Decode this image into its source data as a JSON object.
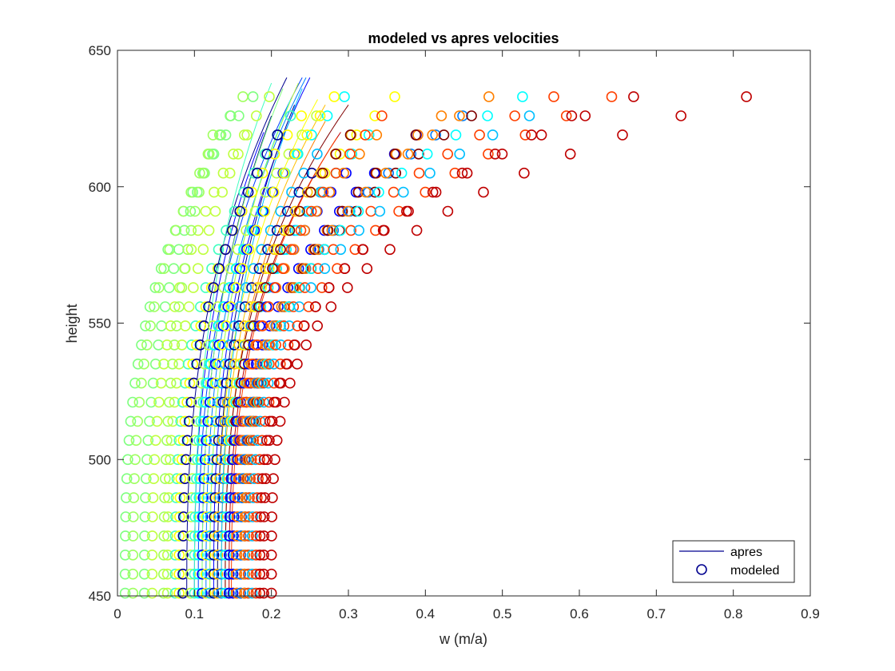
{
  "chart_data": {
    "type": "scatter",
    "title": "modeled vs apres velocities",
    "xlabel": "w (m/a)",
    "ylabel": "height",
    "xlim": [
      0,
      0.9
    ],
    "ylim": [
      450,
      650
    ],
    "xticks": [
      "0",
      "0.1",
      "0.2",
      "0.3",
      "0.4",
      "0.5",
      "0.6",
      "0.7",
      "0.8",
      "0.9"
    ],
    "yticks": [
      "450",
      "500",
      "550",
      "600",
      "650"
    ],
    "grid": false,
    "legend": {
      "placement": "bottom-right",
      "entries": [
        {
          "label": "apres",
          "kind": "line",
          "color": "#00008f"
        },
        {
          "label": "modeled",
          "kind": "marker",
          "color": "#00008f"
        }
      ]
    },
    "profile_model": "w(h) = w_base + (w_top - w_base) * ((h - 450) / (top - 450))^p",
    "modeled_series": [
      {
        "color": "#80ff80",
        "w_base": 0.01,
        "w_top": 0.19,
        "p": 3.0,
        "top": 638
      },
      {
        "color": "#a0ff60",
        "w_base": 0.02,
        "w_top": 0.175,
        "p": 3.0,
        "top": 638
      },
      {
        "color": "#80ff80",
        "w_base": 0.035,
        "w_top": 0.15,
        "p": 2.8,
        "top": 628
      },
      {
        "color": "#c0ff40",
        "w_base": 0.045,
        "w_top": 0.21,
        "p": 3.0,
        "top": 638
      },
      {
        "color": "#a0ff60",
        "w_base": 0.06,
        "w_top": 0.125,
        "p": 2.5,
        "top": 620
      },
      {
        "color": "#c0ff40",
        "w_base": 0.065,
        "w_top": 0.17,
        "p": 2.8,
        "top": 620
      },
      {
        "color": "#40ffc0",
        "w_base": 0.075,
        "w_top": 0.23,
        "p": 3.0,
        "top": 628
      },
      {
        "color": "#ffff00",
        "w_base": 0.08,
        "w_top": 0.25,
        "p": 3.0,
        "top": 630
      },
      {
        "color": "#00008f",
        "w_base": 0.085,
        "w_top": 0.21,
        "p": 2.8,
        "top": 620
      },
      {
        "color": "#c0ff40",
        "w_base": 0.095,
        "w_top": 0.27,
        "p": 3.0,
        "top": 630
      },
      {
        "color": "#40ffc0",
        "w_base": 0.1,
        "w_top": 0.25,
        "p": 3.0,
        "top": 618
      },
      {
        "color": "#00ffff",
        "w_base": 0.105,
        "w_top": 0.305,
        "p": 3.2,
        "top": 636
      },
      {
        "color": "#0000ff",
        "w_base": 0.11,
        "w_top": 0.23,
        "p": 3.0,
        "top": 612
      },
      {
        "color": "#ffff00",
        "w_base": 0.115,
        "w_top": 0.29,
        "p": 3.0,
        "top": 636
      },
      {
        "color": "#00bfff",
        "w_base": 0.12,
        "w_top": 0.27,
        "p": 3.0,
        "top": 616
      },
      {
        "color": "#00008f",
        "w_base": 0.125,
        "w_top": 0.26,
        "p": 3.0,
        "top": 608
      },
      {
        "color": "#ffbf00",
        "w_base": 0.13,
        "w_top": 0.31,
        "p": 3.0,
        "top": 621
      },
      {
        "color": "#0080ff",
        "w_base": 0.135,
        "w_top": 0.28,
        "p": 3.0,
        "top": 604
      },
      {
        "color": "#ffff00",
        "w_base": 0.14,
        "w_top": 0.38,
        "p": 3.2,
        "top": 638
      },
      {
        "color": "#00ffff",
        "w_base": 0.14,
        "w_top": 0.33,
        "p": 3.0,
        "top": 620
      },
      {
        "color": "#800000",
        "w_base": 0.145,
        "w_top": 0.32,
        "p": 3.0,
        "top": 625
      },
      {
        "color": "#0000ff",
        "w_base": 0.145,
        "w_top": 0.3,
        "p": 3.0,
        "top": 606
      },
      {
        "color": "#ff8000",
        "w_base": 0.15,
        "w_top": 0.34,
        "p": 3.0,
        "top": 620
      },
      {
        "color": "#0000ff",
        "w_base": 0.15,
        "w_top": 0.41,
        "p": 3.0,
        "top": 624
      },
      {
        "color": "#ff4000",
        "w_base": 0.155,
        "w_top": 0.35,
        "p": 3.0,
        "top": 628
      },
      {
        "color": "#ff8000",
        "w_base": 0.155,
        "w_top": 0.43,
        "p": 3.0,
        "top": 628
      },
      {
        "color": "#800000",
        "w_base": 0.16,
        "w_top": 0.4,
        "p": 3.0,
        "top": 622
      },
      {
        "color": "#0080ff",
        "w_base": 0.16,
        "w_top": 0.47,
        "p": 3.2,
        "top": 630
      },
      {
        "color": "#800000",
        "w_base": 0.165,
        "w_top": 0.46,
        "p": 3.2,
        "top": 626
      },
      {
        "color": "#ff8000",
        "w_base": 0.165,
        "w_top": 0.5,
        "p": 3.3,
        "top": 636
      },
      {
        "color": "#00ffff",
        "w_base": 0.17,
        "w_top": 0.54,
        "p": 3.5,
        "top": 635
      },
      {
        "color": "#ff4000",
        "w_base": 0.17,
        "w_top": 0.59,
        "p": 3.5,
        "top": 636
      },
      {
        "color": "#00bfff",
        "w_base": 0.175,
        "w_top": 0.58,
        "p": 3.5,
        "top": 632
      },
      {
        "color": "#ff4000",
        "w_base": 0.18,
        "w_top": 0.66,
        "p": 3.5,
        "top": 635
      },
      {
        "color": "#bf0000",
        "w_base": 0.185,
        "w_top": 0.59,
        "p": 3.4,
        "top": 626
      },
      {
        "color": "#bf0000",
        "w_base": 0.19,
        "w_top": 0.68,
        "p": 3.6,
        "top": 634
      },
      {
        "color": "#bf0000",
        "w_base": 0.2,
        "w_top": 0.83,
        "p": 3.8,
        "top": 634
      }
    ],
    "modeled_heights_step": 7,
    "apres_series": [
      {
        "color": "#00008f",
        "w_base": 0.09,
        "w_top": 0.22,
        "p": 2.6,
        "top": 640
      },
      {
        "color": "#0000ff",
        "w_base": 0.1,
        "w_top": 0.19,
        "p": 2.6,
        "top": 620
      },
      {
        "color": "#0040ff",
        "w_base": 0.105,
        "w_top": 0.24,
        "p": 2.7,
        "top": 640
      },
      {
        "color": "#00008f",
        "w_base": 0.11,
        "w_top": 0.2,
        "p": 2.6,
        "top": 626
      },
      {
        "color": "#0080ff",
        "w_base": 0.115,
        "w_top": 0.245,
        "p": 2.7,
        "top": 640
      },
      {
        "color": "#40ffc0",
        "w_base": 0.1,
        "w_top": 0.2,
        "p": 2.6,
        "top": 638
      },
      {
        "color": "#80ff80",
        "w_base": 0.11,
        "w_top": 0.215,
        "p": 2.6,
        "top": 636
      },
      {
        "color": "#00ffff",
        "w_base": 0.12,
        "w_top": 0.225,
        "p": 2.6,
        "top": 632
      },
      {
        "color": "#ffff00",
        "w_base": 0.13,
        "w_top": 0.26,
        "p": 2.7,
        "top": 632
      },
      {
        "color": "#ffbf00",
        "w_base": 0.135,
        "w_top": 0.27,
        "p": 2.7,
        "top": 630
      },
      {
        "color": "#0000ff",
        "w_base": 0.125,
        "w_top": 0.25,
        "p": 2.7,
        "top": 640
      },
      {
        "color": "#00008f",
        "w_base": 0.13,
        "w_top": 0.23,
        "p": 2.6,
        "top": 630
      },
      {
        "color": "#ff8000",
        "w_base": 0.14,
        "w_top": 0.27,
        "p": 2.7,
        "top": 624
      },
      {
        "color": "#800000",
        "w_base": 0.14,
        "w_top": 0.3,
        "p": 2.8,
        "top": 630
      },
      {
        "color": "#bf0000",
        "w_base": 0.145,
        "w_top": 0.29,
        "p": 2.8,
        "top": 620
      },
      {
        "color": "#00bfff",
        "w_base": 0.135,
        "w_top": 0.24,
        "p": 2.6,
        "top": 636
      },
      {
        "color": "#c0ff40",
        "w_base": 0.12,
        "w_top": 0.235,
        "p": 2.6,
        "top": 638
      },
      {
        "color": "#ff4000",
        "w_base": 0.148,
        "w_top": 0.285,
        "p": 2.8,
        "top": 618
      }
    ]
  }
}
